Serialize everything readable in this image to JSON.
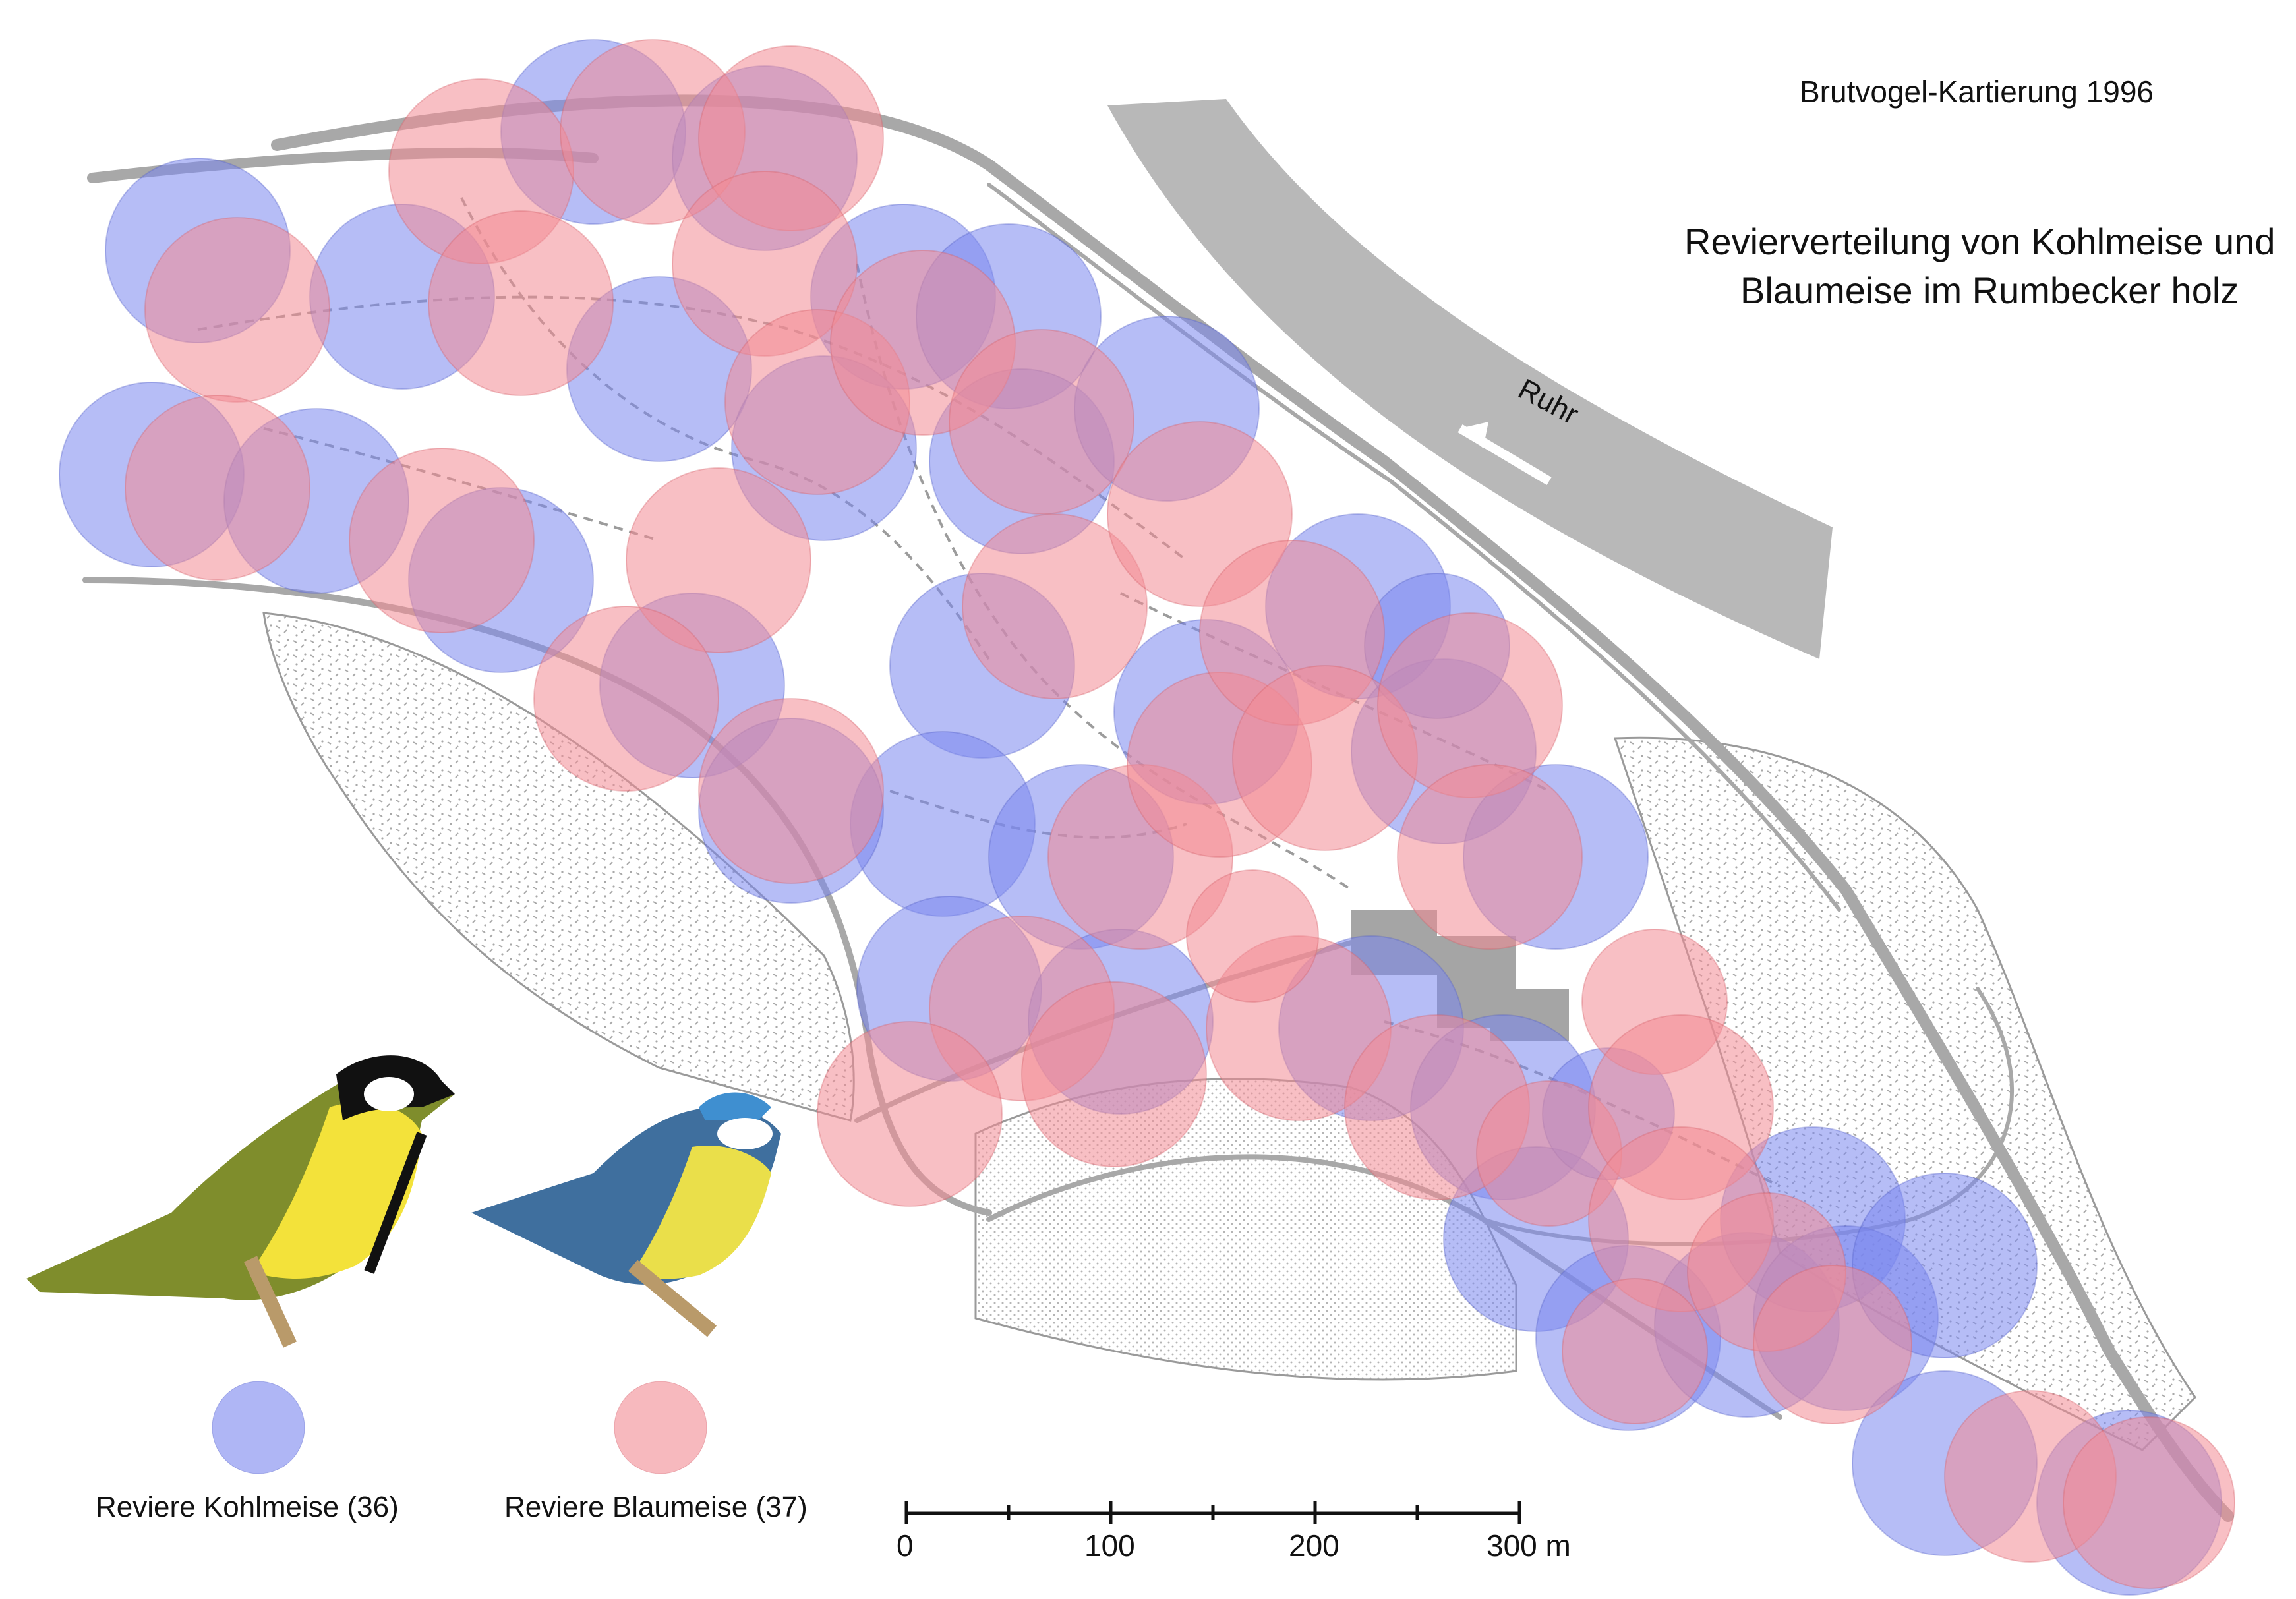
{
  "header": {
    "survey": "Brutvogel-Kartierung 1996",
    "title_line1": "Revierverteilung von Kohlmeise und",
    "title_line2": "Blaumeise im Rumbecker holz"
  },
  "map": {
    "river_label": "Ruhr",
    "colors": {
      "kohlmeise": "#7a86ee",
      "blaumeise": "#f28a93",
      "road": "#a8a8a8",
      "stipple": "#bdbdbd",
      "river": "#b8b8b8"
    }
  },
  "legend": {
    "kohlmeise_label": "Reviere Kohlmeise (36)",
    "blaumeise_label": "Reviere Blaumeise (37)"
  },
  "scale": {
    "ticks": [
      "0",
      "100",
      "200",
      "300 m"
    ]
  }
}
